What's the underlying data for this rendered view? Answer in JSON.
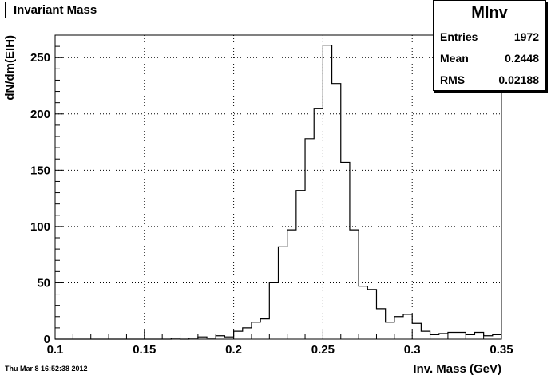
{
  "title": "Invariant Mass",
  "stats": {
    "name": "MInv",
    "entries_label": "Entries",
    "entries_value": "1972",
    "mean_label": "Mean",
    "mean_value": "0.2448",
    "rms_label": "RMS",
    "rms_value": "0.02188"
  },
  "footer": "Thu Mar  8 16:52:38 2012",
  "chart_data": {
    "type": "bar",
    "title": "Invariant Mass",
    "xlabel": "Inv. Mass (GeV)",
    "ylabel": "dN/dm(EIH)",
    "xlim": [
      0.1,
      0.35
    ],
    "ylim": [
      0,
      270
    ],
    "bin_width": 0.005,
    "bin_start": 0.1,
    "x_ticks": [
      "0.1",
      "0.15",
      "0.2",
      "0.25",
      "0.3",
      "0.35"
    ],
    "y_ticks": [
      "0",
      "50",
      "100",
      "150",
      "200",
      "250"
    ],
    "grid": true,
    "values": [
      0,
      0,
      0,
      0,
      0,
      0,
      0,
      0,
      0,
      0,
      0,
      0,
      0,
      1,
      0,
      1,
      2,
      1,
      3,
      2,
      7,
      10,
      15,
      18,
      50,
      82,
      97,
      132,
      178,
      205,
      261,
      227,
      157,
      97,
      47,
      44,
      27,
      15,
      20,
      22,
      14,
      7,
      4,
      5,
      6,
      6,
      4,
      6,
      3,
      4
    ]
  },
  "colors": {
    "axis": "#000000",
    "grid": "#000000",
    "line": "#000000",
    "background": "#ffffff"
  }
}
